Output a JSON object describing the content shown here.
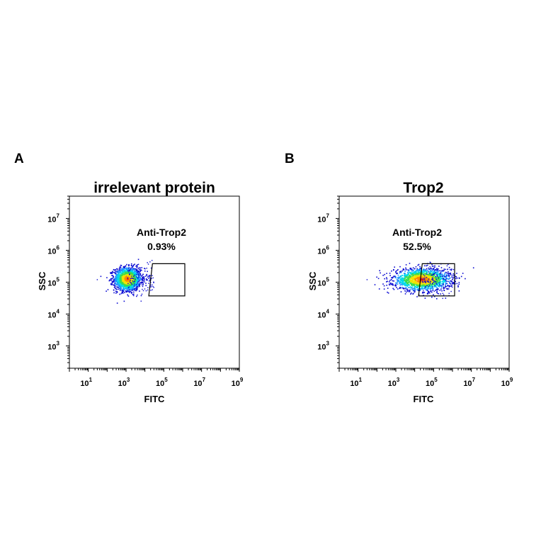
{
  "panels": [
    {
      "letter": "A",
      "chart_data": {
        "type": "scatter",
        "title": "irrelevant protein",
        "xlabel": "FITC",
        "ylabel": "SSC",
        "xscale": "log",
        "yscale": "log",
        "xlim": [
          1,
          1000000000
        ],
        "ylim": [
          200,
          50000000
        ],
        "xticks": [
          {
            "base": "10",
            "exp": "1",
            "v": 10
          },
          {
            "base": "10",
            "exp": "3",
            "v": 1000
          },
          {
            "base": "10",
            "exp": "5",
            "v": 100000
          },
          {
            "base": "10",
            "exp": "7",
            "v": 10000000
          },
          {
            "base": "10",
            "exp": "9",
            "v": 1000000000
          }
        ],
        "yticks": [
          {
            "base": "10",
            "exp": "3",
            "v": 1000
          },
          {
            "base": "10",
            "exp": "4",
            "v": 10000
          },
          {
            "base": "10",
            "exp": "5",
            "v": 100000
          },
          {
            "base": "10",
            "exp": "6",
            "v": 1000000
          },
          {
            "base": "10",
            "exp": "7",
            "v": 10000000
          }
        ],
        "gate": {
          "name": "Anti-Trop2",
          "percent": "0.93%",
          "vertices": [
            [
              25000,
              380000
            ],
            [
              1300000,
              380000
            ],
            [
              1300000,
              37000
            ],
            [
              16000,
              37000
            ]
          ]
        },
        "population": {
          "center_fitc": 1200,
          "center_ssc": 125000,
          "spread_fitc_decades": 0.35,
          "spread_ssc_decades": 0.18,
          "tail_to_fitc": 30000
        },
        "colormap": [
          "#0a0ad2",
          "#1e90ff",
          "#00d8e8",
          "#3ddc4a",
          "#f0e400",
          "#ff8a00",
          "#e01010"
        ]
      }
    },
    {
      "letter": "B",
      "chart_data": {
        "type": "scatter",
        "title": "Trop2",
        "xlabel": "FITC",
        "ylabel": "SSC",
        "xscale": "log",
        "yscale": "log",
        "xlim": [
          1,
          1000000000
        ],
        "ylim": [
          200,
          50000000
        ],
        "xticks": [
          {
            "base": "10",
            "exp": "1",
            "v": 10
          },
          {
            "base": "10",
            "exp": "3",
            "v": 1000
          },
          {
            "base": "10",
            "exp": "5",
            "v": 100000
          },
          {
            "base": "10",
            "exp": "7",
            "v": 10000000
          },
          {
            "base": "10",
            "exp": "9",
            "v": 1000000000
          }
        ],
        "yticks": [
          {
            "base": "10",
            "exp": "3",
            "v": 1000
          },
          {
            "base": "10",
            "exp": "4",
            "v": 10000
          },
          {
            "base": "10",
            "exp": "5",
            "v": 100000
          },
          {
            "base": "10",
            "exp": "6",
            "v": 1000000
          },
          {
            "base": "10",
            "exp": "7",
            "v": 10000000
          }
        ],
        "gate": {
          "name": "Anti-Trop2",
          "percent": "52.5%",
          "vertices": [
            [
              25000,
              380000
            ],
            [
              1300000,
              380000
            ],
            [
              1300000,
              37000
            ],
            [
              16000,
              37000
            ]
          ]
        },
        "population": {
          "center_fitc": 25000,
          "center_ssc": 120000,
          "spread_fitc_decades": 0.75,
          "spread_ssc_decades": 0.17,
          "tail_to_fitc": 1300000
        },
        "colormap": [
          "#0a0ad2",
          "#1e90ff",
          "#00d8e8",
          "#3ddc4a",
          "#f0e400",
          "#ff8a00",
          "#e01010"
        ]
      }
    }
  ]
}
